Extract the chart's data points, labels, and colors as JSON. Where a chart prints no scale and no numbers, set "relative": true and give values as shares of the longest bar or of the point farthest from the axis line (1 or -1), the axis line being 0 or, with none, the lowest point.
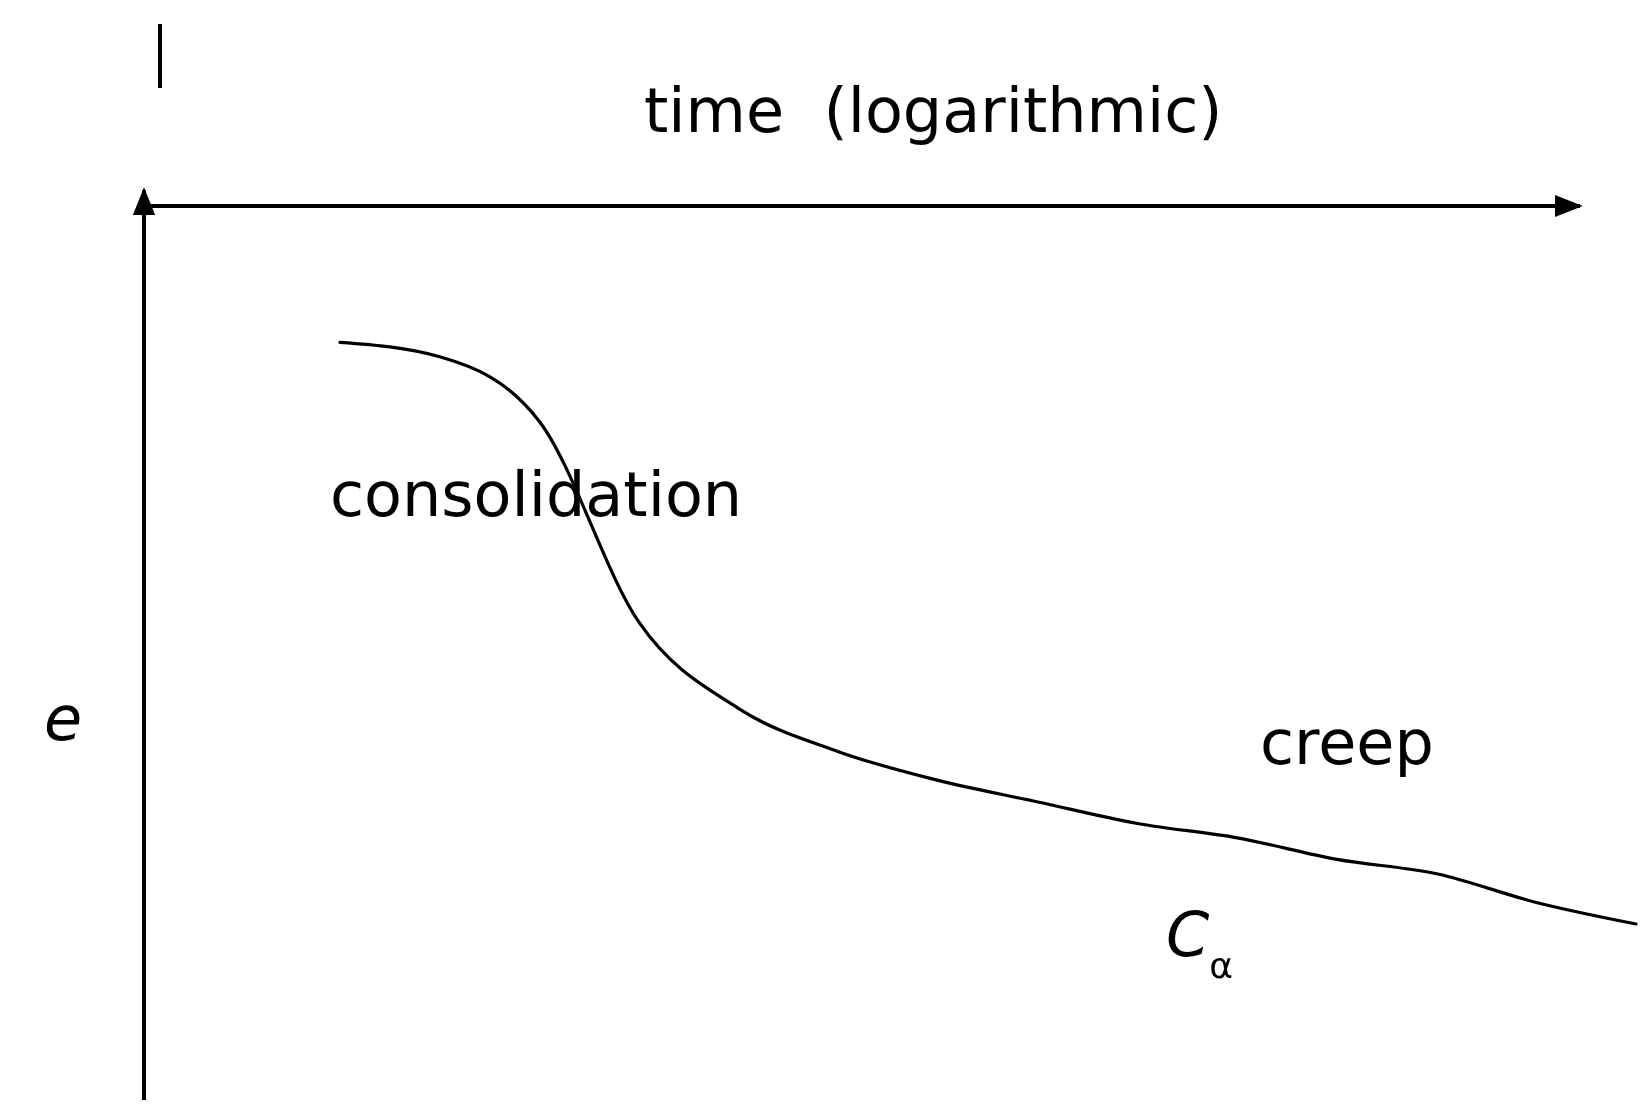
{
  "chart_data": {
    "type": "line",
    "relative": true,
    "xlabel": "time  (logarithmic)",
    "ylabel": "e",
    "categories": [
      null,
      null,
      null,
      null,
      null,
      null,
      null,
      null,
      null,
      null,
      null,
      null,
      null,
      null
    ],
    "series": [
      {
        "color": "#000000",
        "values": [
          -0.19,
          -0.21,
          -0.3,
          -0.58,
          -0.7,
          -0.76,
          -0.8,
          -0.83,
          -0.86,
          -0.88,
          -0.91,
          -0.93,
          -0.97,
          -1
        ]
      }
    ],
    "annotations": [
      "consolidation",
      "creep",
      "C$_{α}$"
    ]
  }
}
